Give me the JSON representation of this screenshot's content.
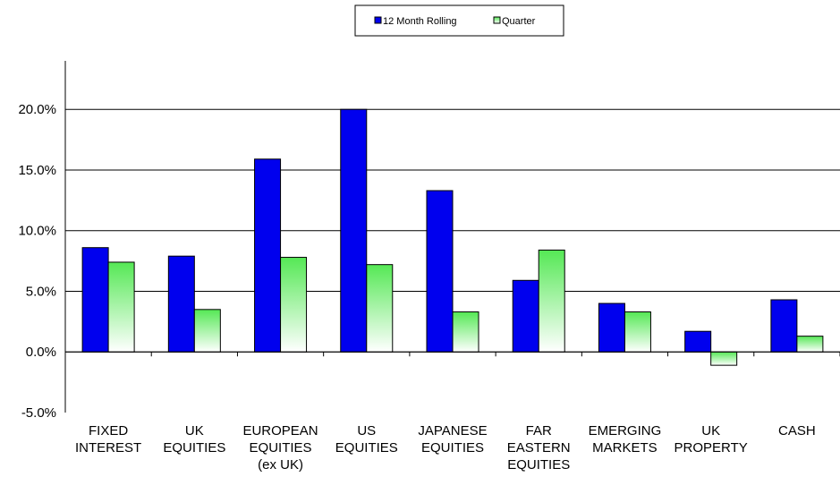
{
  "chart_data": {
    "type": "bar",
    "categories": [
      [
        "FIXED",
        "INTEREST"
      ],
      [
        "UK",
        "EQUITIES"
      ],
      [
        "EUROPEAN",
        "EQUITIES",
        "(ex UK)"
      ],
      [
        "US",
        "EQUITIES"
      ],
      [
        "JAPANESE",
        "EQUITIES"
      ],
      [
        "FAR",
        "EASTERN",
        "EQUITIES"
      ],
      [
        "EMERGING",
        "MARKETS"
      ],
      [
        "UK",
        "PROPERTY"
      ],
      [
        "CASH"
      ]
    ],
    "series": [
      {
        "name": "12 Month Rolling",
        "values": [
          8.6,
          7.9,
          15.9,
          20.0,
          13.3,
          5.9,
          4.0,
          1.7,
          4.3
        ],
        "color": "#0000ee"
      },
      {
        "name": "Quarter",
        "values": [
          7.4,
          3.5,
          7.8,
          7.2,
          3.3,
          8.4,
          3.3,
          -1.1,
          1.3
        ],
        "color": "#66ee66"
      }
    ],
    "yticks": [
      "-5.0%",
      "0.0%",
      "5.0%",
      "10.0%",
      "15.0%",
      "20.0%"
    ],
    "ylim": [
      -5,
      24
    ],
    "grid": true,
    "legend": "top-center",
    "title": "",
    "xlabel": "",
    "ylabel": ""
  }
}
